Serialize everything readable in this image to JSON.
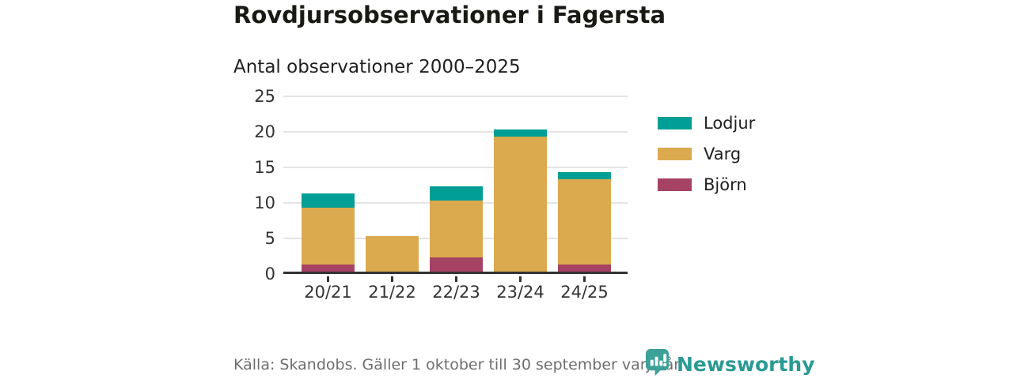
{
  "header": {
    "title": "Rovdjursobservationer i Fagersta",
    "subtitle": "Antal observationer 2000–2025"
  },
  "chart_data": {
    "type": "bar",
    "stacked": true,
    "title": "Rovdjursobservationer i Fagersta",
    "subtitle": "Antal observationer 2000–2025",
    "categories": [
      "20/21",
      "21/22",
      "22/23",
      "23/24",
      "24/25"
    ],
    "series": [
      {
        "name": "Björn",
        "color": "#a64264",
        "values": [
          1,
          0,
          2,
          0,
          1
        ]
      },
      {
        "name": "Varg",
        "color": "#dbaa4f",
        "values": [
          8,
          5,
          8,
          19,
          12
        ]
      },
      {
        "name": "Lodjur",
        "color": "#009e94",
        "values": [
          2,
          0,
          2,
          1,
          1
        ]
      }
    ],
    "totals": [
      11,
      5,
      12,
      20,
      14
    ],
    "ylim": [
      0,
      25
    ],
    "yticks": [
      0,
      5,
      10,
      15,
      20,
      25
    ],
    "grid": "horizontal",
    "legend_position": "right",
    "legend_order": [
      "Lodjur",
      "Varg",
      "Björn"
    ]
  },
  "footer": {
    "source": "Källa: Skandobs. Gäller 1 oktober till 30 september varje år.",
    "brand": "Newsworthy"
  },
  "colors": {
    "axis": "#333333",
    "gridline": "#e4e4e4",
    "title_text": "#1a1a14",
    "footer_text": "#6e6e6e",
    "brand_teal": "#2a9a93",
    "logo_bubble": "#3da099"
  }
}
